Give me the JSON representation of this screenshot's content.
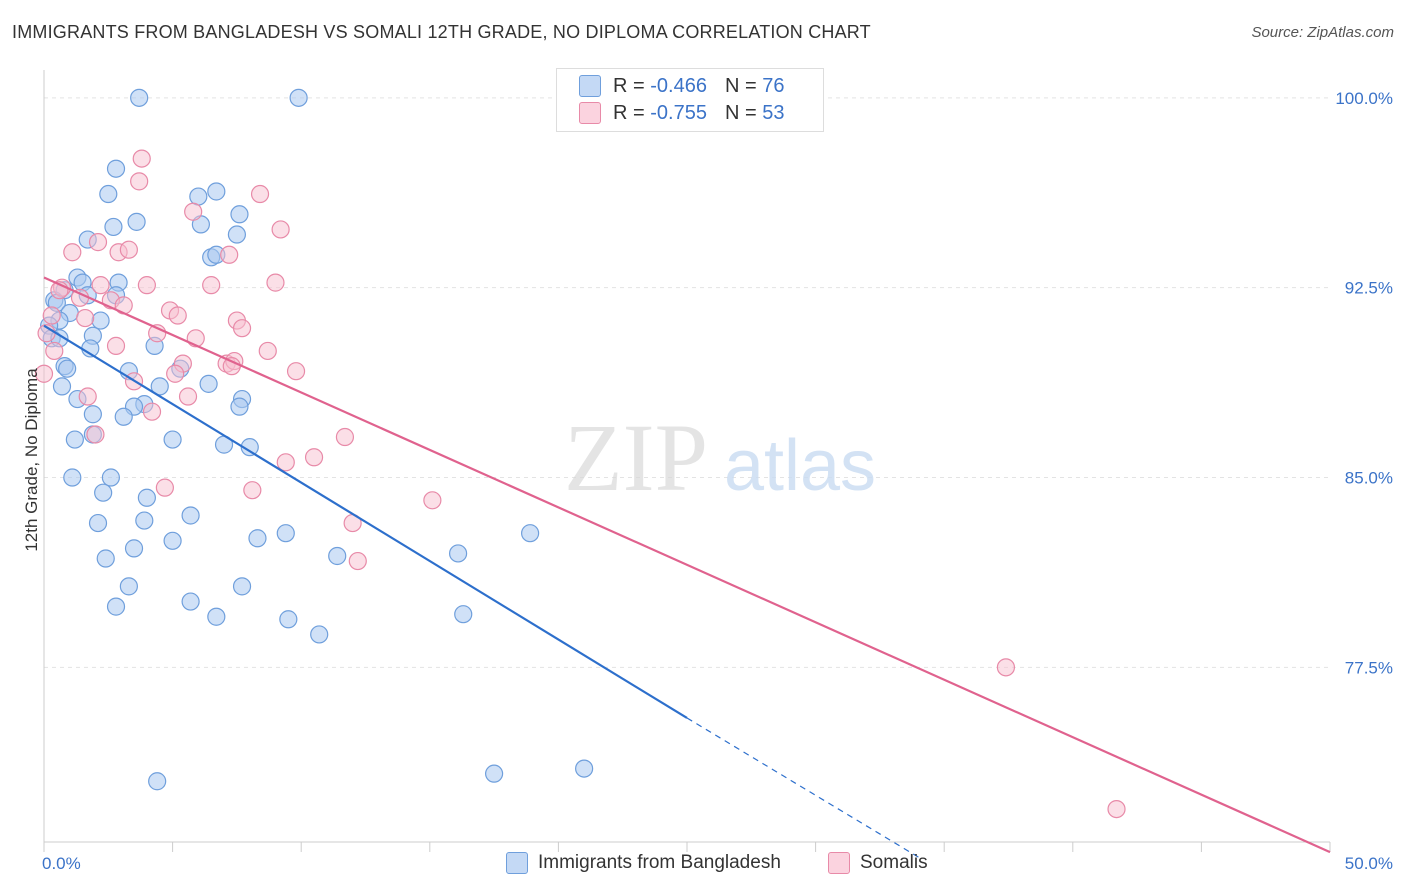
{
  "title": "IMMIGRANTS FROM BANGLADESH VS SOMALI 12TH GRADE, NO DIPLOMA CORRELATION CHART",
  "source": "Source: ZipAtlas.com",
  "watermark": {
    "zip": "ZIP",
    "atlas": "atlas"
  },
  "legend": {
    "rows": [
      {
        "r_label": "R =",
        "r_value": "-0.466",
        "n_label": "N =",
        "n_value": "76"
      },
      {
        "r_label": "R =",
        "r_value": "-0.755",
        "n_label": "N =",
        "n_value": "53"
      }
    ]
  },
  "colors": {
    "blue_fill": "#a9c8f0",
    "blue_stroke": "#6f9fdc",
    "blue_line": "#2d6fcc",
    "pink_fill": "#f7bfd0",
    "pink_stroke": "#e88aa8",
    "pink_line": "#e0628e",
    "axis_text": "#3b73c8",
    "grid": "#e3e3e3"
  },
  "chart_data": {
    "type": "scatter",
    "xlabel": "",
    "ylabel": "12th Grade, No Diploma",
    "xlim": [
      0,
      50
    ],
    "ylim": [
      70.6,
      101.1
    ],
    "x_tick_labels": [
      "0.0%",
      "50.0%"
    ],
    "y_ticks": [
      100.0,
      92.5,
      85.0,
      77.5
    ],
    "y_tick_labels": [
      "100.0%",
      "92.5%",
      "85.0%",
      "77.5%"
    ],
    "grid": true,
    "legend_position": "top-center",
    "series": [
      {
        "name": "Immigrants from Bangladesh",
        "color": "#a9c8f0",
        "points": [
          [
            3.7,
            100.0
          ],
          [
            9.9,
            100.0
          ],
          [
            2.8,
            97.2
          ],
          [
            2.5,
            96.2
          ],
          [
            6.0,
            96.1
          ],
          [
            6.7,
            96.3
          ],
          [
            3.6,
            95.1
          ],
          [
            2.7,
            94.9
          ],
          [
            6.1,
            95.0
          ],
          [
            7.6,
            95.4
          ],
          [
            7.5,
            94.6
          ],
          [
            1.7,
            94.4
          ],
          [
            6.5,
            93.7
          ],
          [
            6.7,
            93.8
          ],
          [
            1.3,
            92.9
          ],
          [
            1.5,
            92.7
          ],
          [
            2.9,
            92.7
          ],
          [
            0.8,
            92.4
          ],
          [
            1.7,
            92.2
          ],
          [
            2.8,
            92.2
          ],
          [
            0.4,
            92.0
          ],
          [
            0.5,
            91.9
          ],
          [
            1.0,
            91.5
          ],
          [
            0.6,
            91.2
          ],
          [
            0.2,
            91.0
          ],
          [
            2.2,
            91.2
          ],
          [
            0.3,
            90.5
          ],
          [
            0.6,
            90.5
          ],
          [
            1.9,
            90.6
          ],
          [
            1.8,
            90.1
          ],
          [
            4.3,
            90.2
          ],
          [
            0.8,
            89.4
          ],
          [
            0.9,
            89.3
          ],
          [
            3.3,
            89.2
          ],
          [
            5.3,
            89.3
          ],
          [
            0.7,
            88.6
          ],
          [
            4.5,
            88.6
          ],
          [
            6.4,
            88.7
          ],
          [
            1.3,
            88.1
          ],
          [
            1.9,
            87.5
          ],
          [
            3.9,
            87.9
          ],
          [
            3.5,
            87.8
          ],
          [
            7.7,
            88.1
          ],
          [
            7.6,
            87.8
          ],
          [
            3.1,
            87.4
          ],
          [
            1.9,
            86.7
          ],
          [
            1.2,
            86.5
          ],
          [
            5.0,
            86.5
          ],
          [
            7.0,
            86.3
          ],
          [
            8.0,
            86.2
          ],
          [
            1.1,
            85.0
          ],
          [
            2.6,
            85.0
          ],
          [
            4.0,
            84.2
          ],
          [
            2.3,
            84.4
          ],
          [
            3.9,
            83.3
          ],
          [
            5.7,
            83.5
          ],
          [
            2.1,
            83.2
          ],
          [
            5.0,
            82.5
          ],
          [
            8.3,
            82.6
          ],
          [
            9.4,
            82.8
          ],
          [
            18.9,
            82.8
          ],
          [
            3.5,
            82.2
          ],
          [
            2.4,
            81.8
          ],
          [
            11.4,
            81.9
          ],
          [
            16.1,
            82.0
          ],
          [
            3.3,
            80.7
          ],
          [
            7.7,
            80.7
          ],
          [
            5.7,
            80.1
          ],
          [
            2.8,
            79.9
          ],
          [
            9.5,
            79.4
          ],
          [
            16.3,
            79.6
          ],
          [
            10.7,
            78.8
          ],
          [
            6.7,
            79.5
          ],
          [
            4.4,
            73.0
          ],
          [
            17.5,
            73.3
          ],
          [
            21.0,
            73.5
          ]
        ]
      },
      {
        "name": "Somalis",
        "color": "#f7bfd0",
        "points": [
          [
            3.8,
            97.6
          ],
          [
            3.7,
            96.7
          ],
          [
            8.4,
            96.2
          ],
          [
            5.8,
            95.5
          ],
          [
            9.2,
            94.8
          ],
          [
            1.1,
            93.9
          ],
          [
            2.9,
            93.9
          ],
          [
            2.1,
            94.3
          ],
          [
            3.3,
            94.0
          ],
          [
            7.2,
            93.8
          ],
          [
            0.7,
            92.5
          ],
          [
            2.2,
            92.6
          ],
          [
            4.0,
            92.6
          ],
          [
            6.5,
            92.6
          ],
          [
            9.0,
            92.7
          ],
          [
            0.6,
            92.4
          ],
          [
            1.4,
            92.1
          ],
          [
            2.6,
            92.0
          ],
          [
            3.1,
            91.8
          ],
          [
            4.9,
            91.6
          ],
          [
            5.2,
            91.4
          ],
          [
            7.5,
            91.2
          ],
          [
            7.7,
            90.9
          ],
          [
            1.6,
            91.3
          ],
          [
            0.3,
            91.4
          ],
          [
            0.1,
            90.7
          ],
          [
            4.4,
            90.7
          ],
          [
            5.9,
            90.5
          ],
          [
            2.8,
            90.2
          ],
          [
            8.7,
            90.0
          ],
          [
            5.4,
            89.5
          ],
          [
            7.1,
            89.5
          ],
          [
            7.4,
            89.6
          ],
          [
            7.3,
            89.4
          ],
          [
            9.8,
            89.2
          ],
          [
            0.0,
            89.1
          ],
          [
            3.5,
            88.8
          ],
          [
            5.1,
            89.1
          ],
          [
            5.6,
            88.2
          ],
          [
            1.7,
            88.2
          ],
          [
            4.2,
            87.6
          ],
          [
            11.7,
            86.6
          ],
          [
            2.0,
            86.7
          ],
          [
            9.4,
            85.6
          ],
          [
            10.5,
            85.8
          ],
          [
            4.7,
            84.6
          ],
          [
            8.1,
            84.5
          ],
          [
            15.1,
            84.1
          ],
          [
            12.0,
            83.2
          ],
          [
            12.2,
            81.7
          ],
          [
            37.4,
            77.5
          ],
          [
            41.7,
            71.9
          ],
          [
            0.4,
            90.0
          ]
        ]
      }
    ],
    "trend_lines": [
      {
        "series": "Immigrants from Bangladesh",
        "x": [
          0,
          25
        ],
        "y": [
          91.0,
          75.5
        ],
        "dashed_extension_to": [
          34.0,
          70.0
        ]
      },
      {
        "series": "Somalis",
        "x": [
          0,
          50
        ],
        "y": [
          92.9,
          70.2
        ]
      }
    ]
  },
  "bottom_legend": {
    "items": [
      {
        "label": "Immigrants from Bangladesh"
      },
      {
        "label": "Somalis"
      }
    ]
  }
}
